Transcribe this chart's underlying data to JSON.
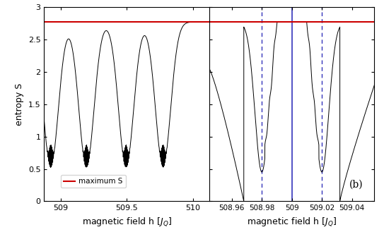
{
  "ylabel": "entropy S",
  "ylim": [
    0,
    3
  ],
  "yticks": [
    0,
    0.5,
    1,
    1.5,
    2,
    2.5,
    3
  ],
  "xlim_left": [
    508.875,
    510.125
  ],
  "xticks_left": [
    509.0,
    509.5,
    510.0
  ],
  "xlim_right": [
    508.945,
    509.055
  ],
  "xticks_right": [
    508.96,
    508.98,
    509.0,
    509.02,
    509.04
  ],
  "max_S": 2.773,
  "max_S_color": "#cc0000",
  "line_color": "#000000",
  "blue_solid_x": 509.0,
  "blue_dashed_x1": 508.98,
  "blue_dashed_x2": 509.02,
  "blue_color": "#3333bb",
  "label_b": "(b)",
  "legend_label": "maximum S",
  "background_color": "#ffffff"
}
